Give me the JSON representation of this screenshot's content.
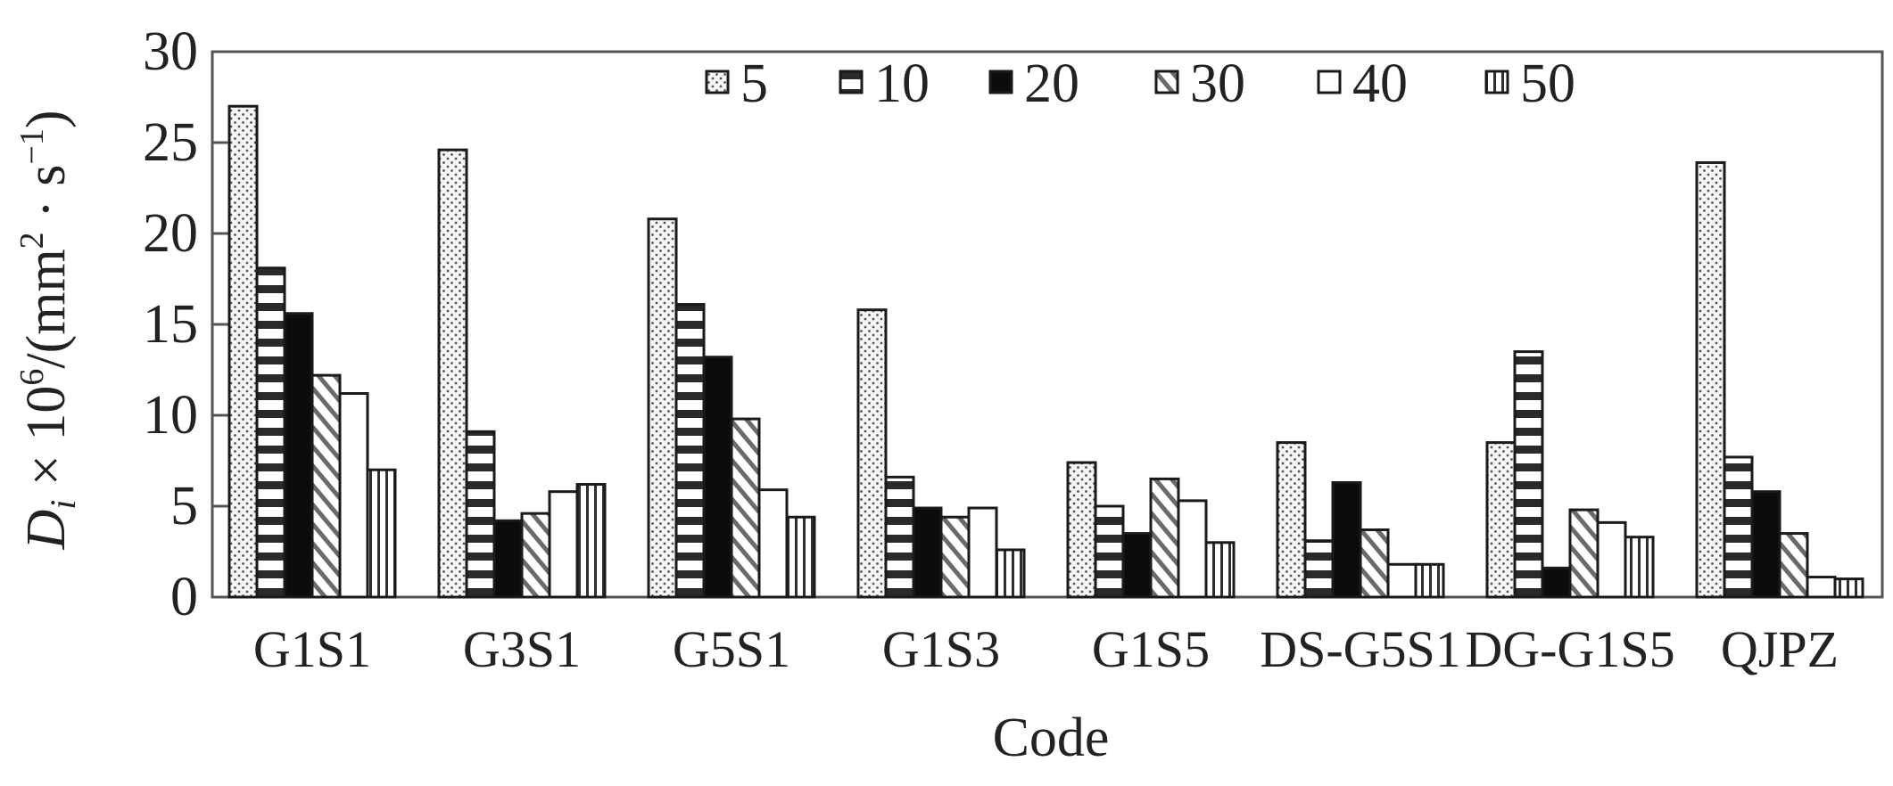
{
  "chart_data": {
    "type": "bar",
    "title": "",
    "xlabel": "Code",
    "ylabel": "D_i × 10^6/(mm^2·s^-1)",
    "ylabel_parts": {
      "main": "D",
      "sub": "i",
      "rest1": " × 10",
      "sup1": "6",
      "rest2": "/(mm",
      "sup2": "2",
      "rest3": " · s",
      "sup3": "−1",
      "rest4": ")"
    },
    "ylim": [
      0,
      30
    ],
    "yticks": [
      0,
      5,
      10,
      15,
      20,
      25,
      30
    ],
    "grid": false,
    "legend_position": "top-inside",
    "categories": [
      "G1S1",
      "G3S1",
      "G5S1",
      "G1S3",
      "G1S5",
      "DS-G5S1",
      "DG-G1S5",
      "QJPZ"
    ],
    "series": [
      {
        "name": "5",
        "pattern": "dotted",
        "values": [
          27.0,
          24.6,
          20.8,
          15.8,
          7.4,
          8.5,
          8.5,
          23.9
        ]
      },
      {
        "name": "10",
        "pattern": "horizontal",
        "values": [
          18.1,
          9.1,
          16.1,
          6.6,
          5.0,
          3.1,
          13.5,
          7.7
        ]
      },
      {
        "name": "20",
        "pattern": "solid",
        "values": [
          15.6,
          4.2,
          13.2,
          4.9,
          3.5,
          6.3,
          1.6,
          5.8
        ]
      },
      {
        "name": "30",
        "pattern": "diagonal",
        "values": [
          12.2,
          4.6,
          9.8,
          4.4,
          6.5,
          3.7,
          4.8,
          3.5
        ]
      },
      {
        "name": "40",
        "pattern": "blank",
        "values": [
          11.2,
          5.8,
          5.9,
          4.9,
          5.3,
          1.8,
          4.1,
          1.1
        ]
      },
      {
        "name": "50",
        "pattern": "vertical",
        "values": [
          7.0,
          6.2,
          4.4,
          2.6,
          3.0,
          1.8,
          3.3,
          1.0
        ]
      }
    ]
  },
  "colors": {
    "ink": "#1a1a1a",
    "background": "#ffffff",
    "frame": "#555555"
  }
}
